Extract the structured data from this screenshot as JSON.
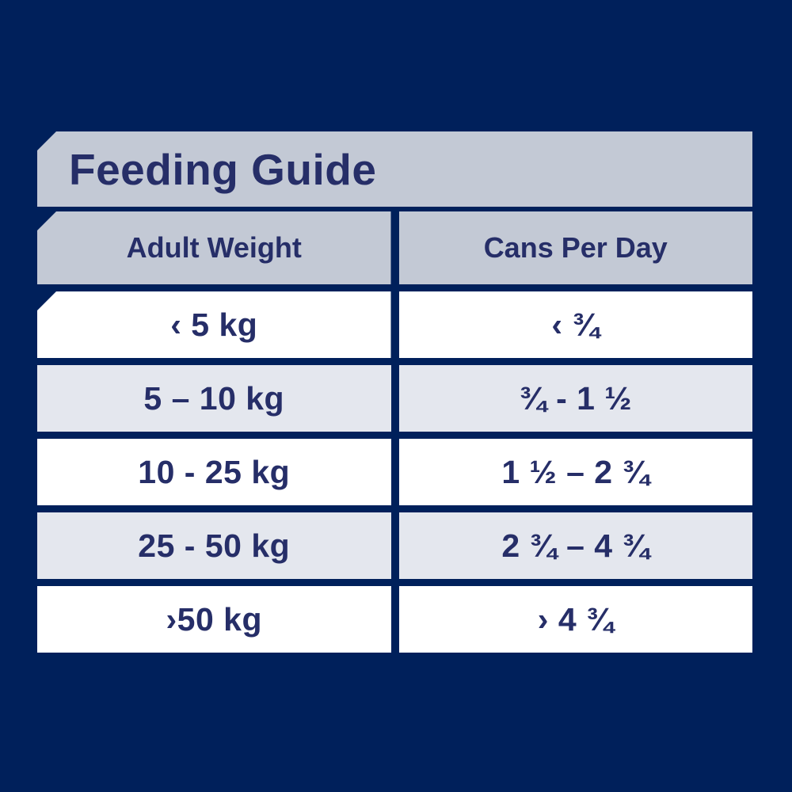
{
  "colors": {
    "bg_navy": "#00205b",
    "panel_gray": "#c3c9d5",
    "row_white": "#ffffff",
    "row_alt": "#e4e7ee",
    "text_navy": "#262e68"
  },
  "title": "Feeding Guide",
  "table": {
    "columns": [
      "Adult Weight",
      "Cans Per Day"
    ],
    "rows": [
      {
        "weight": "‹ 5 kg",
        "cans": "‹ ¾"
      },
      {
        "weight": "5 – 10 kg",
        "cans": "¾ - 1 ½"
      },
      {
        "weight": "10 - 25 kg",
        "cans": "1 ½ – 2 ¾"
      },
      {
        "weight": "25 - 50 kg",
        "cans": "2 ¾ – 4 ¾"
      },
      {
        "weight": "›50 kg",
        "cans": "› 4 ¾"
      }
    ]
  },
  "chart_data": {
    "type": "table",
    "title": "Feeding Guide",
    "columns": [
      "Adult Weight",
      "Cans Per Day"
    ],
    "rows": [
      [
        "‹ 5 kg",
        "‹ ¾"
      ],
      [
        "5 – 10 kg",
        "¾ - 1 ½"
      ],
      [
        "10 - 25 kg",
        "1 ½ – 2 ¾"
      ],
      [
        "25 - 50 kg",
        "2 ¾ – 4 ¾"
      ],
      [
        "›50 kg",
        "› 4 ¾"
      ]
    ]
  }
}
